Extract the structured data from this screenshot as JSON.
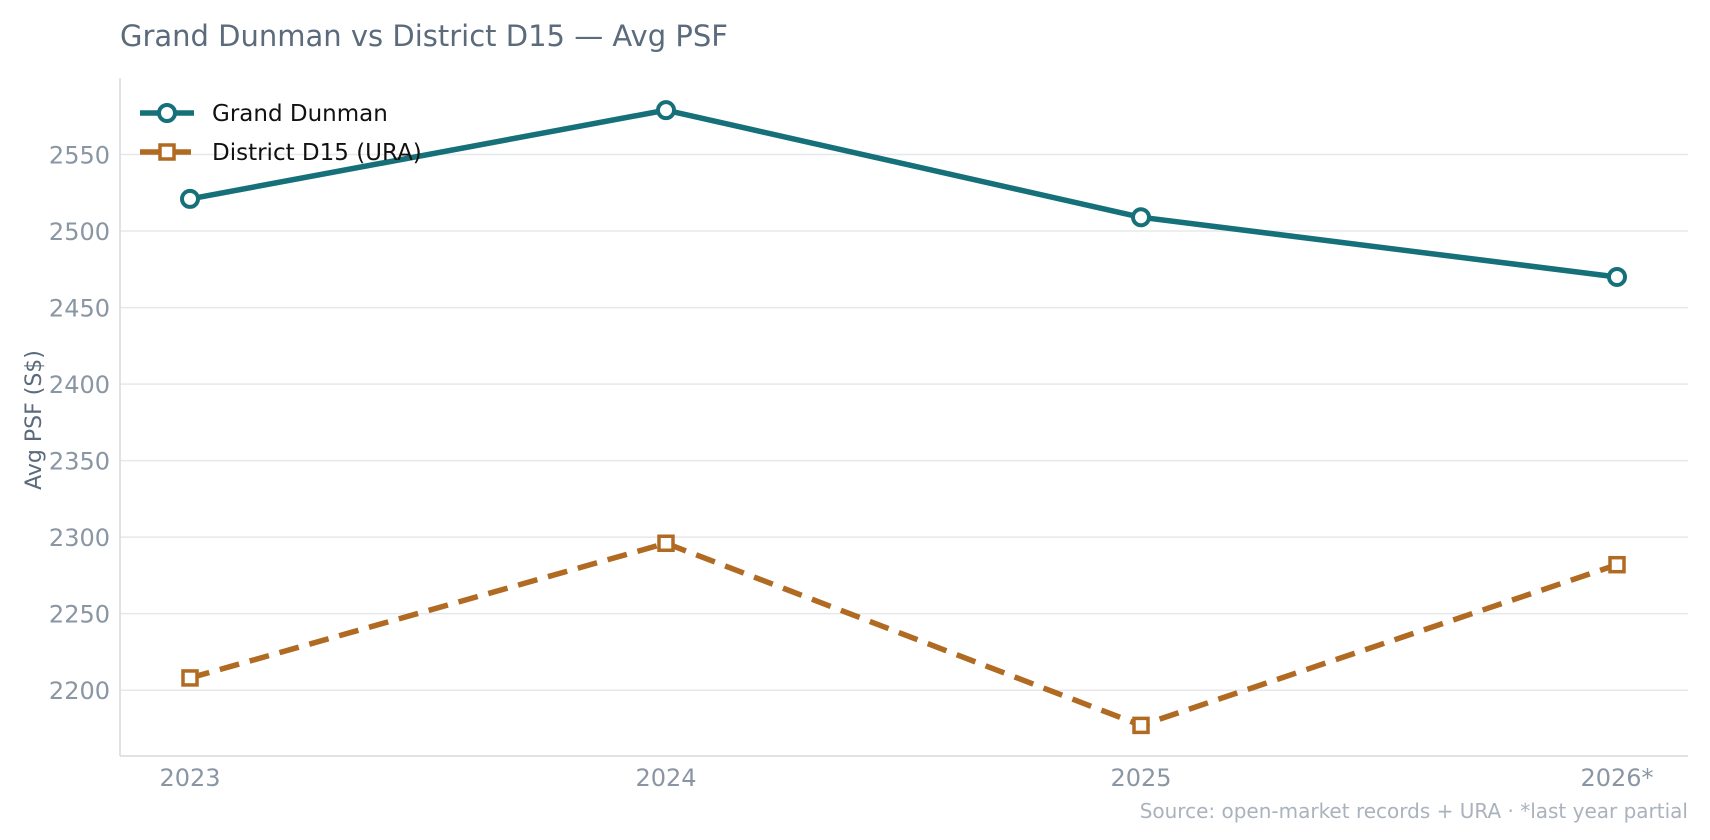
{
  "chart_data": {
    "type": "line",
    "title": "Grand Dunman vs District D15 — Avg PSF",
    "xlabel": "",
    "ylabel": "Avg PSF (S$)",
    "categories": [
      "2023",
      "2024",
      "2025",
      "2026*"
    ],
    "series": [
      {
        "name": "Grand Dunman",
        "values": [
          2521,
          2579,
          2509,
          2470
        ],
        "color": "#167079",
        "marker": "circle",
        "line": "solid"
      },
      {
        "name": "District D15 (URA)",
        "values": [
          2208,
          2296,
          2177,
          2282
        ],
        "color": "#b06a22",
        "marker": "square",
        "line": "dashed"
      }
    ],
    "yticks": [
      2200,
      2250,
      2300,
      2350,
      2400,
      2450,
      2500,
      2550
    ],
    "ylim": [
      2157,
      2600
    ],
    "grid": "horizontal",
    "legend": "top-left",
    "footnote": "Source: open-market records + URA · *last year partial"
  }
}
